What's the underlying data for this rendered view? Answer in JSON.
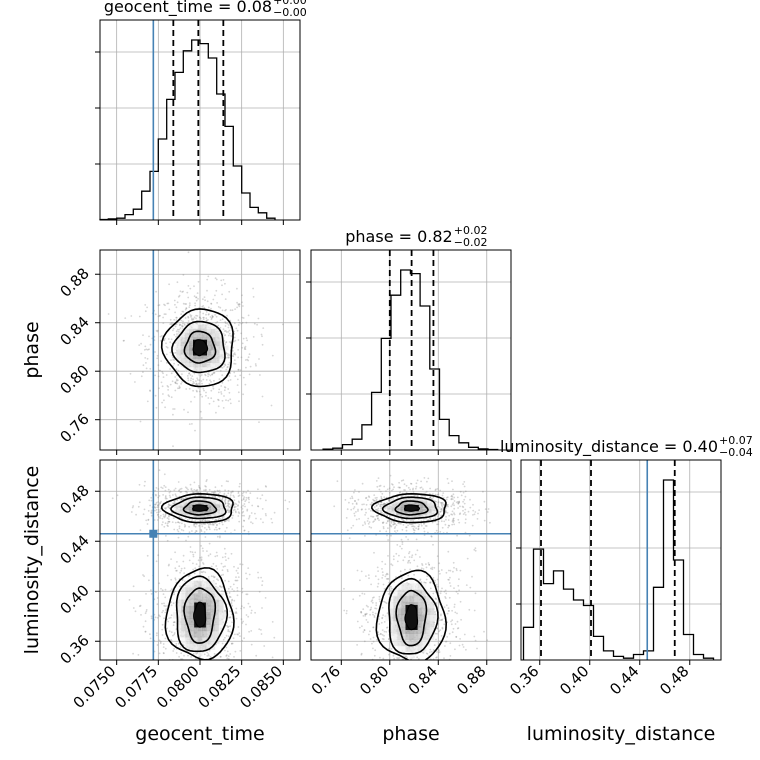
{
  "chart_data": {
    "type": "corner",
    "parameters": [
      "geocent_time",
      "phase",
      "luminosity_distance"
    ],
    "truths": {
      "geocent_time": 0.0772,
      "phase": null,
      "luminosity_distance": 0.446
    },
    "truth_color": "#4682b4",
    "grid": true,
    "ranges": {
      "geocent_time": [
        0.074,
        0.086
      ],
      "phase": [
        0.735,
        0.9
      ],
      "luminosity_distance": [
        0.345,
        0.505
      ]
    },
    "ticks": {
      "geocent_time": [
        "0.0750",
        "0.0775",
        "0.0800",
        "0.0825",
        "0.0850"
      ],
      "geocent_time_values": [
        0.075,
        0.0775,
        0.08,
        0.0825,
        0.085
      ],
      "phase": [
        "0.76",
        "0.80",
        "0.84",
        "0.88"
      ],
      "phase_values": [
        0.76,
        0.8,
        0.84,
        0.88
      ],
      "luminosity_distance": [
        "0.36",
        "0.40",
        "0.44",
        "0.48"
      ],
      "luminosity_distance_values": [
        0.36,
        0.4,
        0.44,
        0.48
      ]
    },
    "titles": [
      {
        "param": "geocent_time",
        "main": "geocent_time = 0.08",
        "sup": "+0.00",
        "sub": "−0.00"
      },
      {
        "param": "phase",
        "main": "phase = 0.82",
        "sup": "+0.02",
        "sub": "−0.02"
      },
      {
        "param": "luminosity_distance",
        "main": "luminosity_distance = 0.40",
        "sup": "+0.07",
        "sub": "−0.04"
      }
    ],
    "quantiles": {
      "geocent_time": [
        0.0784,
        0.0799,
        0.0814
      ],
      "phase": [
        0.8,
        0.818,
        0.836
      ],
      "luminosity_distance": [
        0.361,
        0.401,
        0.468
      ]
    },
    "histograms": {
      "geocent_time": {
        "edges": [
          0.074,
          0.0745,
          0.075,
          0.0755,
          0.076,
          0.0765,
          0.077,
          0.0775,
          0.078,
          0.0785,
          0.079,
          0.0795,
          0.08,
          0.0805,
          0.081,
          0.0815,
          0.082,
          0.0825,
          0.083,
          0.0835,
          0.084,
          0.0845
        ],
        "counts": [
          0.3,
          0.6,
          1.0,
          3.0,
          6.0,
          16.0,
          27.0,
          45.0,
          67.0,
          82.0,
          94.0,
          100.0,
          98.0,
          90.0,
          70.0,
          52.0,
          30.0,
          15.0,
          7.0,
          4.0,
          1.0
        ]
      },
      "phase": {
        "edges": [
          0.745,
          0.753,
          0.761,
          0.769,
          0.777,
          0.785,
          0.793,
          0.801,
          0.809,
          0.817,
          0.825,
          0.833,
          0.841,
          0.849,
          0.857,
          0.865,
          0.873,
          0.881,
          0.889
        ],
        "counts": [
          0.5,
          1.0,
          3.0,
          6.0,
          14.0,
          32.0,
          62.0,
          86.0,
          100.0,
          98.0,
          80.0,
          45.0,
          17.0,
          8.0,
          4.0,
          1.5,
          0.6,
          0.3
        ]
      },
      "luminosity_distance": {
        "edges": [
          0.347,
          0.355,
          0.363,
          0.371,
          0.379,
          0.387,
          0.395,
          0.403,
          0.411,
          0.419,
          0.427,
          0.435,
          0.443,
          0.451,
          0.459,
          0.467,
          0.475,
          0.483,
          0.491,
          0.499
        ],
        "counts": [
          18.0,
          61.0,
          42.0,
          49.0,
          39.0,
          33.0,
          30.0,
          13.0,
          5.0,
          2.0,
          1.0,
          3.0,
          5.0,
          40.0,
          99.0,
          55.0,
          14.0,
          3.0,
          1.0
        ]
      }
    },
    "contours": [
      {
        "x": "geocent_time",
        "y": "phase",
        "regions": [
          {
            "cx": 0.08,
            "cy": 0.8195,
            "rx": [
              0.00042,
              0.0009,
              0.00155,
              0.0021
            ],
            "ry": [
              0.0065,
              0.013,
              0.021,
              0.032
            ]
          }
        ]
      },
      {
        "x": "geocent_time",
        "y": "luminosity_distance",
        "regions": [
          {
            "cx": 0.08,
            "cy": 0.4665,
            "rx": [
              0.00045,
              0.00095,
              0.0016,
              0.0021
            ],
            "ry": [
              0.0025,
              0.0055,
              0.0085,
              0.0115
            ]
          },
          {
            "cx": 0.08,
            "cy": 0.381,
            "rx": [
              0.00035,
              0.0009,
              0.0015,
              0.002
            ],
            "ry": [
              0.01,
              0.022,
              0.03,
              0.036
            ]
          }
        ]
      },
      {
        "x": "phase",
        "y": "luminosity_distance",
        "regions": [
          {
            "cx": 0.818,
            "cy": 0.4665,
            "rx": [
              0.006,
              0.013,
              0.022,
              0.03
            ],
            "ry": [
              0.0025,
              0.0055,
              0.0085,
              0.0115
            ]
          },
          {
            "cx": 0.818,
            "cy": 0.379,
            "rx": [
              0.005,
              0.012,
              0.02,
              0.028
            ],
            "ry": [
              0.01,
              0.022,
              0.03,
              0.036
            ]
          }
        ]
      }
    ]
  }
}
